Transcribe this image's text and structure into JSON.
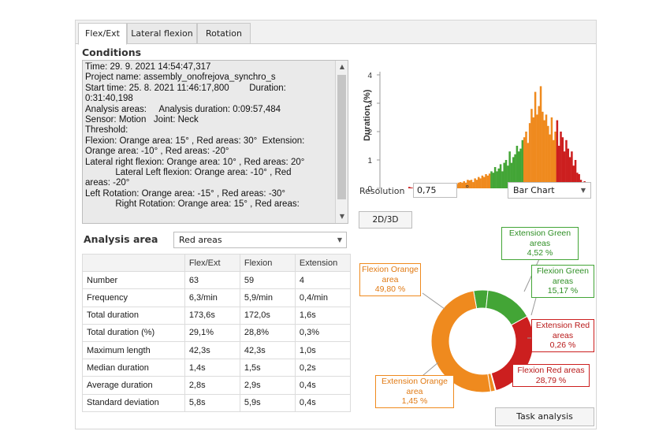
{
  "tabs": [
    {
      "label": "Flex/Ext",
      "active": true
    },
    {
      "label": "Lateral flexion",
      "active": false
    },
    {
      "label": "Rotation",
      "active": false
    }
  ],
  "conditions": {
    "title": "Conditions",
    "text": "Time: 29. 9. 2021 14:54:47,317\nProject name: assembly_onofrejova_synchro_s\nStart time: 25. 8. 2021 11:46:17,800        Duration:\n0:31:40,198\nAnalysis areas:     Analysis duration: 0:09:57,484\nSensor: Motion   Joint: Neck\nThreshold:\nFlexion: Orange area: 15° , Red areas: 30°  Extension:\nOrange area: -10° , Red areas: -20°\nLateral right flexion: Orange area: 10° , Red areas: 20°\n            Lateral Left flexion: Orange area: -10° , Red\nareas: -20°\nLeft Rotation: Orange area: -15° , Red areas: -30°\n            Right Rotation: Orange area: 15° , Red areas:"
  },
  "analysis_area": {
    "label": "Analysis area",
    "selected": "Red areas"
  },
  "table": {
    "headers": [
      "",
      "Flex/Ext",
      "Flexion",
      "Extension"
    ],
    "rows": [
      [
        "Number",
        "63",
        "59",
        "4"
      ],
      [
        "Frequency",
        "6,3/min",
        "5,9/min",
        "0,4/min"
      ],
      [
        "Total duration",
        "173,6s",
        "172,0s",
        "1,6s"
      ],
      [
        "Total duration (%)",
        "29,1%",
        "28,8%",
        "0,3%"
      ],
      [
        "Maximum length",
        "42,3s",
        "42,3s",
        "1,0s"
      ],
      [
        "Median duration",
        "1,4s",
        "1,5s",
        "0,2s"
      ],
      [
        "Average duration",
        "2,8s",
        "2,9s",
        "0,4s"
      ],
      [
        "Standard deviation",
        "5,8s",
        "5,9s",
        "0,4s"
      ]
    ]
  },
  "histogram": {
    "ylabel": "Duration (%)",
    "yticks": [
      "0",
      "1",
      "2",
      "3",
      "4"
    ],
    "colors": {
      "red": "#cc1f1f",
      "orange": "#ef8a1e",
      "green": "#43a536"
    }
  },
  "resolution": {
    "label": "Resolution",
    "value": "0,75",
    "unit": "°"
  },
  "chart_type_select": "Bar Chart",
  "button_2d3d": "2D/3D",
  "button_task": "Task analysis",
  "chart_data": [
    {
      "type": "bar",
      "ylabel": "Duration (%)",
      "ylim": [
        0,
        4
      ],
      "xlim_deg": [
        -60,
        60
      ],
      "bin_width_deg": 0.75,
      "values": [
        0.05,
        0.03,
        0.02,
        0.1,
        0.05,
        0.08,
        0.05,
        0.12,
        0.08,
        0.15,
        0.06,
        0.12,
        0.1,
        0.05,
        0.08,
        0.05,
        0.1,
        0.12,
        0.1,
        0.08,
        0.12,
        0.1,
        0.15,
        0.12,
        0.14,
        0.18,
        0.15,
        0.2,
        0.22,
        0.2,
        0.25,
        0.2,
        0.3,
        0.28,
        0.3,
        0.22,
        0.35,
        0.3,
        0.4,
        0.35,
        0.45,
        0.4,
        0.5,
        0.45,
        0.52,
        0.6,
        0.55,
        0.75,
        0.6,
        0.7,
        0.85,
        0.6,
        0.9,
        1.0,
        0.8,
        1.3,
        0.9,
        1.1,
        1.2,
        1.5,
        1.3,
        1.4,
        1.7,
        1.8,
        2.0,
        1.6,
        2.3,
        2.8,
        2.5,
        3.4,
        2.6,
        2.9,
        3.6,
        2.7,
        2.4,
        2.6,
        2.2,
        1.9,
        2.5,
        1.7,
        2.0,
        2.4,
        1.5,
        2.0,
        1.8,
        1.3,
        1.7,
        1.4,
        1.1,
        1.3,
        0.8,
        1.0,
        0.55,
        0.5,
        0.3,
        0.15,
        0.25,
        0.12
      ],
      "segments": [
        {
          "name": "red",
          "from": 0,
          "to": 8
        },
        {
          "name": "orange",
          "from": 8,
          "to": 45
        },
        {
          "name": "green",
          "from": 45,
          "to": 63
        },
        {
          "name": "orange",
          "from": 63,
          "to": 81
        },
        {
          "name": "red",
          "from": 81,
          "to": 98
        }
      ]
    },
    {
      "type": "pie",
      "slices": [
        {
          "name": "Flexion Orange area",
          "value": 49.8,
          "label": "49,80 %",
          "color": "#ef8a1e"
        },
        {
          "name": "Extension Green areas",
          "value": 4.52,
          "label": "4,52 %",
          "color": "#43a536"
        },
        {
          "name": "Flexion Green areas",
          "value": 15.17,
          "label": "15,17 %",
          "color": "#43a536"
        },
        {
          "name": "Extension Red areas",
          "value": 0.26,
          "label": "0,26 %",
          "color": "#cc1f1f"
        },
        {
          "name": "Flexion Red areas",
          "value": 28.79,
          "label": "28,79 %",
          "color": "#cc1f1f"
        },
        {
          "name": "Extension Orange area",
          "value": 1.45,
          "label": "1,45 %",
          "color": "#ef8a1e"
        }
      ]
    }
  ]
}
